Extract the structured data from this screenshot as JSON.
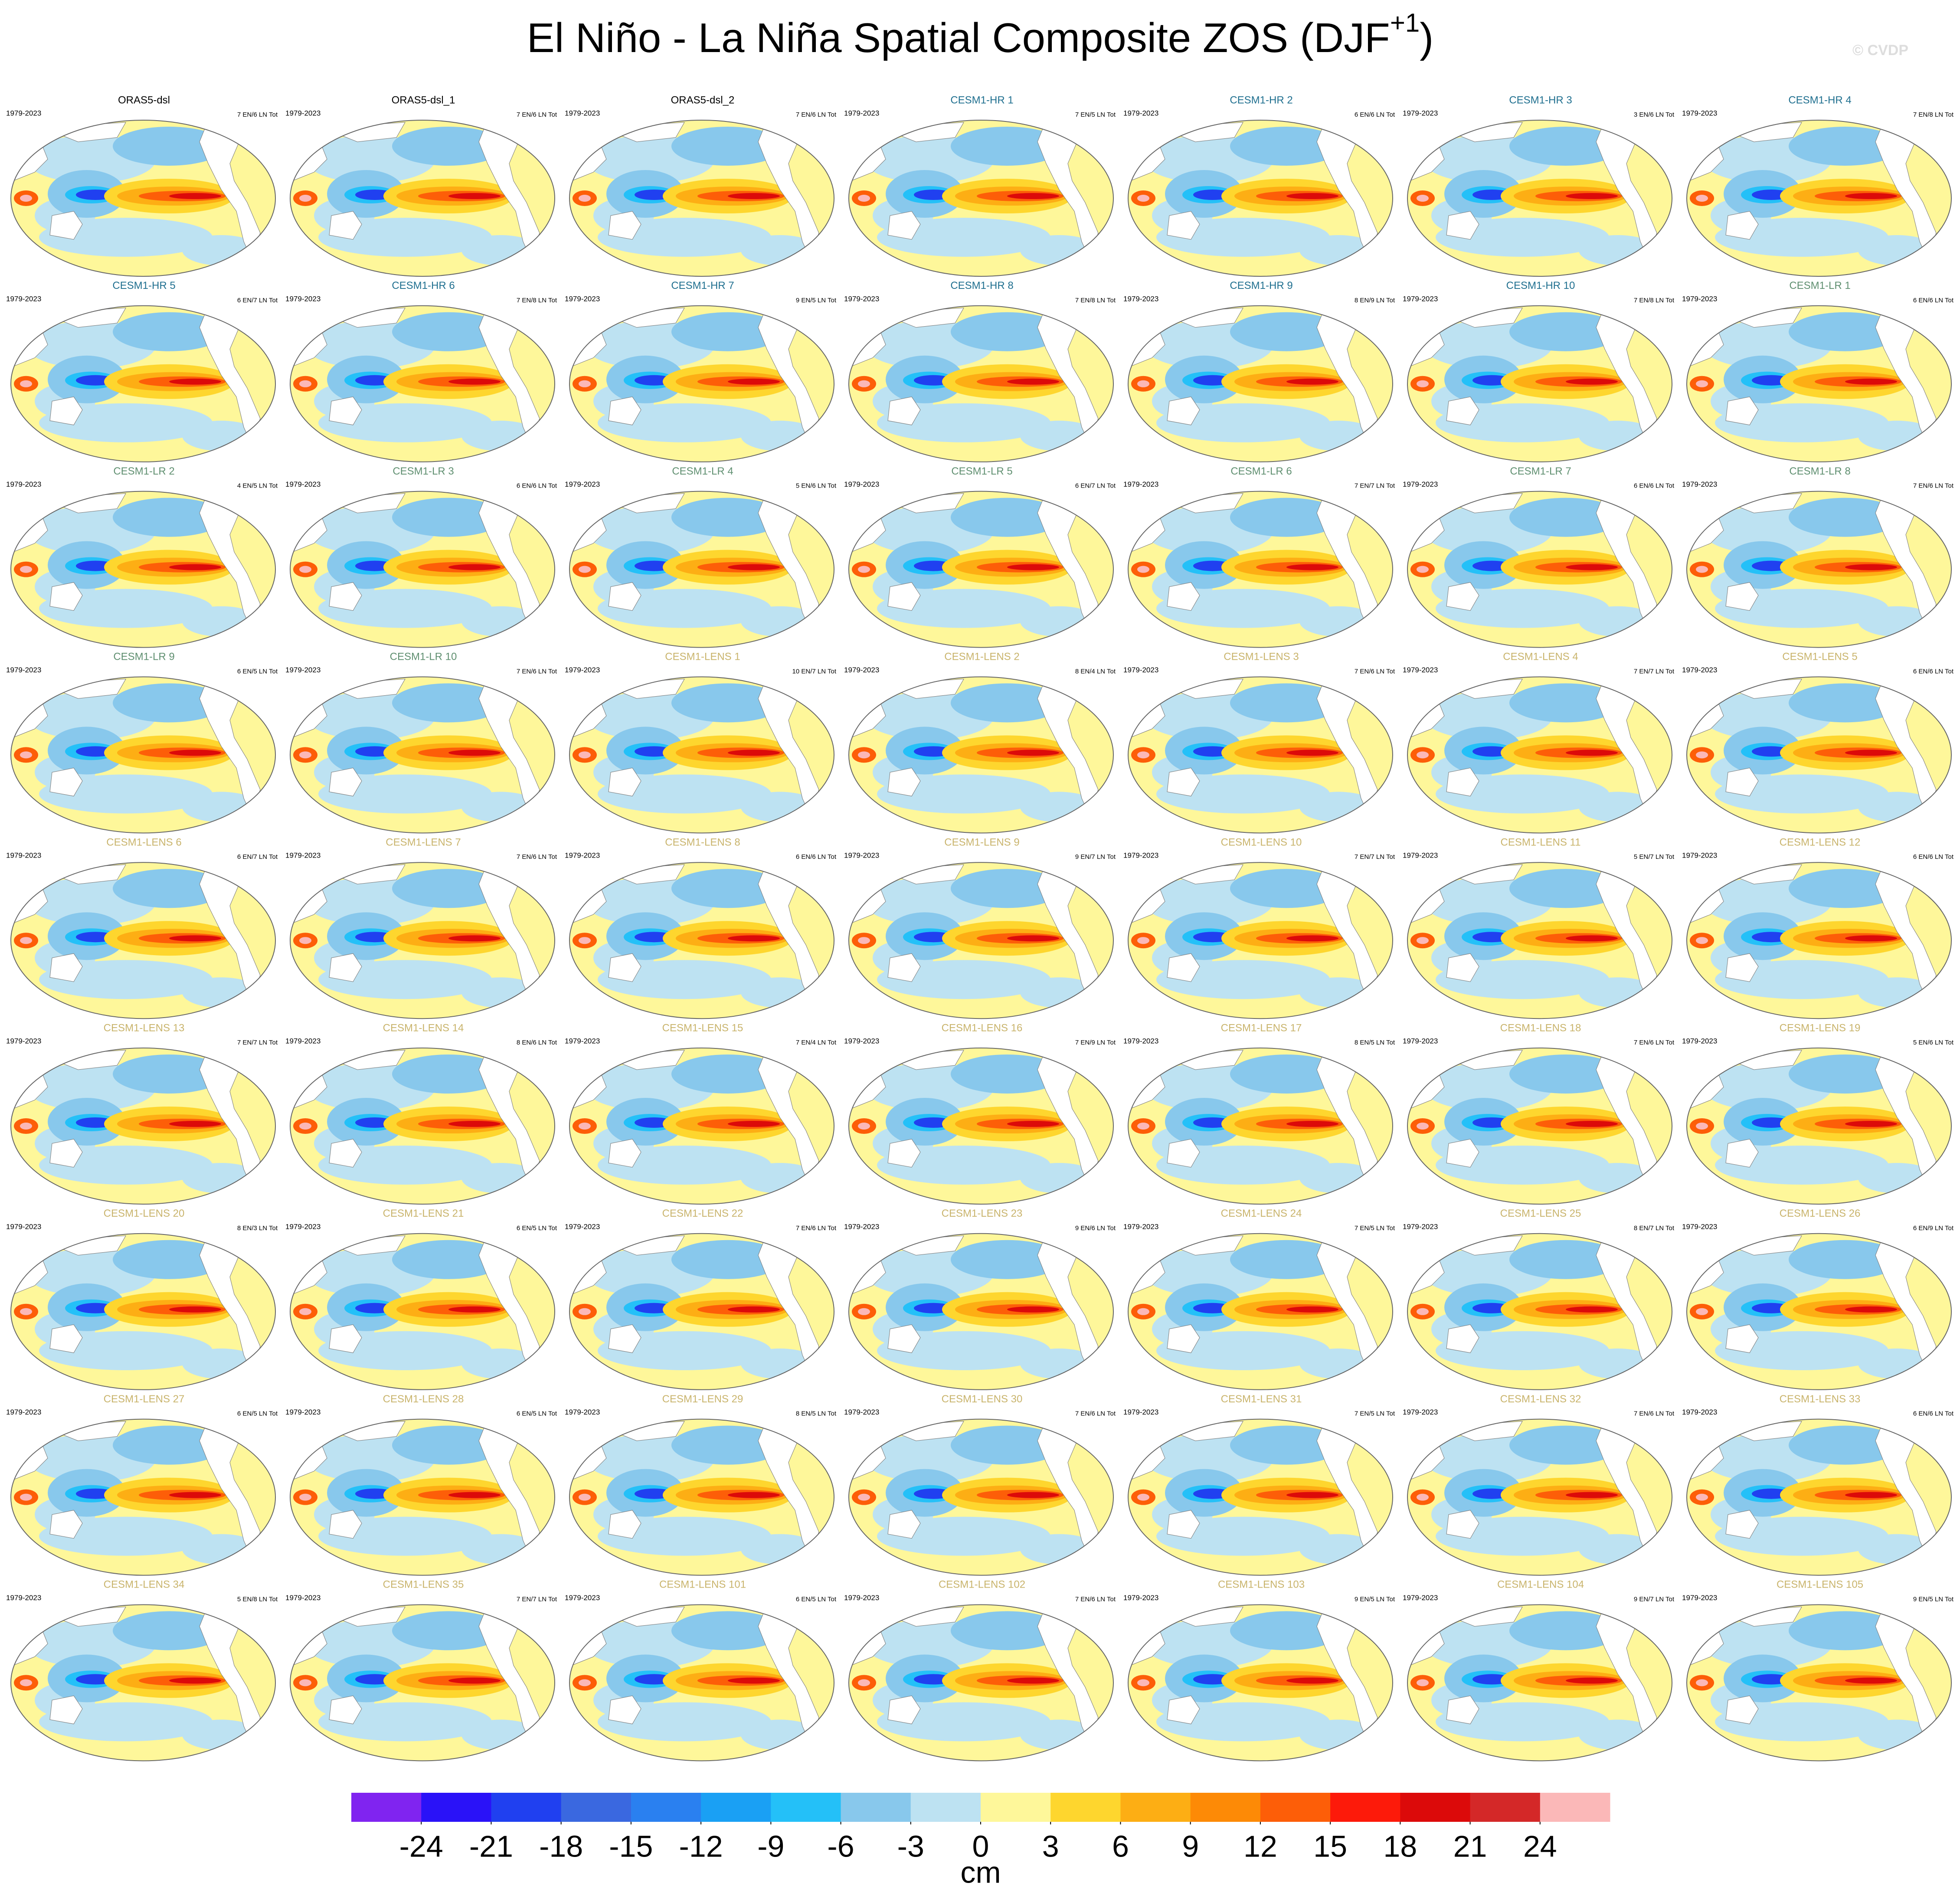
{
  "title": "El Niño - La Niña Spatial Composite ZOS (DJF",
  "title_superscript": "+1",
  "title_end": ")",
  "copyright": "© CVDP",
  "panels": [
    {
      "name": "ORAS5-dsl",
      "period": "1979-2023",
      "counts": "7 EN/6 LN Tot",
      "color": "#000000"
    },
    {
      "name": "ORAS5-dsl_1",
      "period": "1979-2023",
      "counts": "7 EN/6 LN Tot",
      "color": "#000000"
    },
    {
      "name": "ORAS5-dsl_2",
      "period": "1979-2023",
      "counts": "7 EN/6 LN Tot",
      "color": "#000000"
    },
    {
      "name": "CESM1-HR 1",
      "period": "1979-2023",
      "counts": "7 EN/5 LN Tot",
      "color": "#1f6f8f"
    },
    {
      "name": "CESM1-HR 2",
      "period": "1979-2023",
      "counts": "6 EN/6 LN Tot",
      "color": "#1f6f8f"
    },
    {
      "name": "CESM1-HR 3",
      "period": "1979-2023",
      "counts": "3 EN/6 LN Tot",
      "color": "#1f6f8f"
    },
    {
      "name": "CESM1-HR 4",
      "period": "1979-2023",
      "counts": "7 EN/8 LN Tot",
      "color": "#1f6f8f"
    },
    {
      "name": "CESM1-HR 5",
      "period": "1979-2023",
      "counts": "6 EN/7 LN Tot",
      "color": "#1f6f8f"
    },
    {
      "name": "CESM1-HR 6",
      "period": "1979-2023",
      "counts": "7 EN/8 LN Tot",
      "color": "#1f6f8f"
    },
    {
      "name": "CESM1-HR 7",
      "period": "1979-2023",
      "counts": "9 EN/5 LN Tot",
      "color": "#1f6f8f"
    },
    {
      "name": "CESM1-HR 8",
      "period": "1979-2023",
      "counts": "7 EN/8 LN Tot",
      "color": "#1f6f8f"
    },
    {
      "name": "CESM1-HR 9",
      "period": "1979-2023",
      "counts": "8 EN/9 LN Tot",
      "color": "#1f6f8f"
    },
    {
      "name": "CESM1-HR 10",
      "period": "1979-2023",
      "counts": "7 EN/8 LN Tot",
      "color": "#1f6f8f"
    },
    {
      "name": "CESM1-LR 1",
      "period": "1979-2023",
      "counts": "6 EN/6 LN Tot",
      "color": "#5f8f70"
    },
    {
      "name": "CESM1-LR 2",
      "period": "1979-2023",
      "counts": "4 EN/5 LN Tot",
      "color": "#5f8f70"
    },
    {
      "name": "CESM1-LR 3",
      "period": "1979-2023",
      "counts": "6 EN/6 LN Tot",
      "color": "#5f8f70"
    },
    {
      "name": "CESM1-LR 4",
      "period": "1979-2023",
      "counts": "5 EN/6 LN Tot",
      "color": "#5f8f70"
    },
    {
      "name": "CESM1-LR 5",
      "period": "1979-2023",
      "counts": "6 EN/7 LN Tot",
      "color": "#5f8f70"
    },
    {
      "name": "CESM1-LR 6",
      "period": "1979-2023",
      "counts": "7 EN/7 LN Tot",
      "color": "#5f8f70"
    },
    {
      "name": "CESM1-LR 7",
      "period": "1979-2023",
      "counts": "6 EN/6 LN Tot",
      "color": "#5f8f70"
    },
    {
      "name": "CESM1-LR 8",
      "period": "1979-2023",
      "counts": "7 EN/6 LN Tot",
      "color": "#5f8f70"
    },
    {
      "name": "CESM1-LR 9",
      "period": "1979-2023",
      "counts": "6 EN/5 LN Tot",
      "color": "#5f8f70"
    },
    {
      "name": "CESM1-LR 10",
      "period": "1979-2023",
      "counts": "7 EN/6 LN Tot",
      "color": "#5f8f70"
    },
    {
      "name": "CESM1-LENS 1",
      "period": "1979-2023",
      "counts": "10 EN/7 LN Tot",
      "color": "#c9b46c"
    },
    {
      "name": "CESM1-LENS 2",
      "period": "1979-2023",
      "counts": "8 EN/4 LN Tot",
      "color": "#c9b46c"
    },
    {
      "name": "CESM1-LENS 3",
      "period": "1979-2023",
      "counts": "7 EN/6 LN Tot",
      "color": "#c9b46c"
    },
    {
      "name": "CESM1-LENS 4",
      "period": "1979-2023",
      "counts": "7 EN/7 LN Tot",
      "color": "#c9b46c"
    },
    {
      "name": "CESM1-LENS 5",
      "period": "1979-2023",
      "counts": "6 EN/6 LN Tot",
      "color": "#c9b46c"
    },
    {
      "name": "CESM1-LENS 6",
      "period": "1979-2023",
      "counts": "6 EN/7 LN Tot",
      "color": "#c9b46c"
    },
    {
      "name": "CESM1-LENS 7",
      "period": "1979-2023",
      "counts": "7 EN/6 LN Tot",
      "color": "#c9b46c"
    },
    {
      "name": "CESM1-LENS 8",
      "period": "1979-2023",
      "counts": "6 EN/6 LN Tot",
      "color": "#c9b46c"
    },
    {
      "name": "CESM1-LENS 9",
      "period": "1979-2023",
      "counts": "9 EN/7 LN Tot",
      "color": "#c9b46c"
    },
    {
      "name": "CESM1-LENS 10",
      "period": "1979-2023",
      "counts": "7 EN/7 LN Tot",
      "color": "#c9b46c"
    },
    {
      "name": "CESM1-LENS 11",
      "period": "1979-2023",
      "counts": "5 EN/7 LN Tot",
      "color": "#c9b46c"
    },
    {
      "name": "CESM1-LENS 12",
      "period": "1979-2023",
      "counts": "6 EN/6 LN Tot",
      "color": "#c9b46c"
    },
    {
      "name": "CESM1-LENS 13",
      "period": "1979-2023",
      "counts": "7 EN/7 LN Tot",
      "color": "#c9b46c"
    },
    {
      "name": "CESM1-LENS 14",
      "period": "1979-2023",
      "counts": "8 EN/6 LN Tot",
      "color": "#c9b46c"
    },
    {
      "name": "CESM1-LENS 15",
      "period": "1979-2023",
      "counts": "7 EN/4 LN Tot",
      "color": "#c9b46c"
    },
    {
      "name": "CESM1-LENS 16",
      "period": "1979-2023",
      "counts": "7 EN/9 LN Tot",
      "color": "#c9b46c"
    },
    {
      "name": "CESM1-LENS 17",
      "period": "1979-2023",
      "counts": "8 EN/5 LN Tot",
      "color": "#c9b46c"
    },
    {
      "name": "CESM1-LENS 18",
      "period": "1979-2023",
      "counts": "7 EN/6 LN Tot",
      "color": "#c9b46c"
    },
    {
      "name": "CESM1-LENS 19",
      "period": "1979-2023",
      "counts": "5 EN/6 LN Tot",
      "color": "#c9b46c"
    },
    {
      "name": "CESM1-LENS 20",
      "period": "1979-2023",
      "counts": "8 EN/3 LN Tot",
      "color": "#c9b46c"
    },
    {
      "name": "CESM1-LENS 21",
      "period": "1979-2023",
      "counts": "6 EN/5 LN Tot",
      "color": "#c9b46c"
    },
    {
      "name": "CESM1-LENS 22",
      "period": "1979-2023",
      "counts": "7 EN/6 LN Tot",
      "color": "#c9b46c"
    },
    {
      "name": "CESM1-LENS 23",
      "period": "1979-2023",
      "counts": "9 EN/6 LN Tot",
      "color": "#c9b46c"
    },
    {
      "name": "CESM1-LENS 24",
      "period": "1979-2023",
      "counts": "7 EN/5 LN Tot",
      "color": "#c9b46c"
    },
    {
      "name": "CESM1-LENS 25",
      "period": "1979-2023",
      "counts": "8 EN/7 LN Tot",
      "color": "#c9b46c"
    },
    {
      "name": "CESM1-LENS 26",
      "period": "1979-2023",
      "counts": "6 EN/9 LN Tot",
      "color": "#c9b46c"
    },
    {
      "name": "CESM1-LENS 27",
      "period": "1979-2023",
      "counts": "6 EN/5 LN Tot",
      "color": "#c9b46c"
    },
    {
      "name": "CESM1-LENS 28",
      "period": "1979-2023",
      "counts": "6 EN/5 LN Tot",
      "color": "#c9b46c"
    },
    {
      "name": "CESM1-LENS 29",
      "period": "1979-2023",
      "counts": "8 EN/5 LN Tot",
      "color": "#c9b46c"
    },
    {
      "name": "CESM1-LENS 30",
      "period": "1979-2023",
      "counts": "7 EN/6 LN Tot",
      "color": "#c9b46c"
    },
    {
      "name": "CESM1-LENS 31",
      "period": "1979-2023",
      "counts": "7 EN/5 LN Tot",
      "color": "#c9b46c"
    },
    {
      "name": "CESM1-LENS 32",
      "period": "1979-2023",
      "counts": "7 EN/6 LN Tot",
      "color": "#c9b46c"
    },
    {
      "name": "CESM1-LENS 33",
      "period": "1979-2023",
      "counts": "6 EN/6 LN Tot",
      "color": "#c9b46c"
    },
    {
      "name": "CESM1-LENS 34",
      "period": "1979-2023",
      "counts": "5 EN/8 LN Tot",
      "color": "#c9b46c"
    },
    {
      "name": "CESM1-LENS 35",
      "period": "1979-2023",
      "counts": "7 EN/7 LN Tot",
      "color": "#c9b46c"
    },
    {
      "name": "CESM1-LENS 101",
      "period": "1979-2023",
      "counts": "6 EN/5 LN Tot",
      "color": "#c9b46c"
    },
    {
      "name": "CESM1-LENS 102",
      "period": "1979-2023",
      "counts": "7 EN/6 LN Tot",
      "color": "#c9b46c"
    },
    {
      "name": "CESM1-LENS 103",
      "period": "1979-2023",
      "counts": "9 EN/5 LN Tot",
      "color": "#c9b46c"
    },
    {
      "name": "CESM1-LENS 104",
      "period": "1979-2023",
      "counts": "9 EN/7 LN Tot",
      "color": "#c9b46c"
    },
    {
      "name": "CESM1-LENS 105",
      "period": "1979-2023",
      "counts": "9 EN/5 LN Tot",
      "color": "#c9b46c"
    }
  ],
  "colorbar": {
    "label": "cm",
    "vlim": [
      -27,
      27
    ],
    "ticks": [
      -24,
      -21,
      -18,
      -15,
      -12,
      -9,
      -6,
      -3,
      0,
      3,
      6,
      9,
      12,
      15,
      18,
      21,
      24
    ],
    "colors": [
      "#8024f0",
      "#2a12f8",
      "#2040f0",
      "#3a68e0",
      "#2a80f0",
      "#1aa0f4",
      "#24c0f8",
      "#88c8ec",
      "#bde2f2",
      "#fef79a",
      "#fed62e",
      "#fdae14",
      "#fd8a06",
      "#fd5e08",
      "#fd1a0a",
      "#dc0a0a",
      "#d42828",
      "#fbb8b8"
    ]
  }
}
